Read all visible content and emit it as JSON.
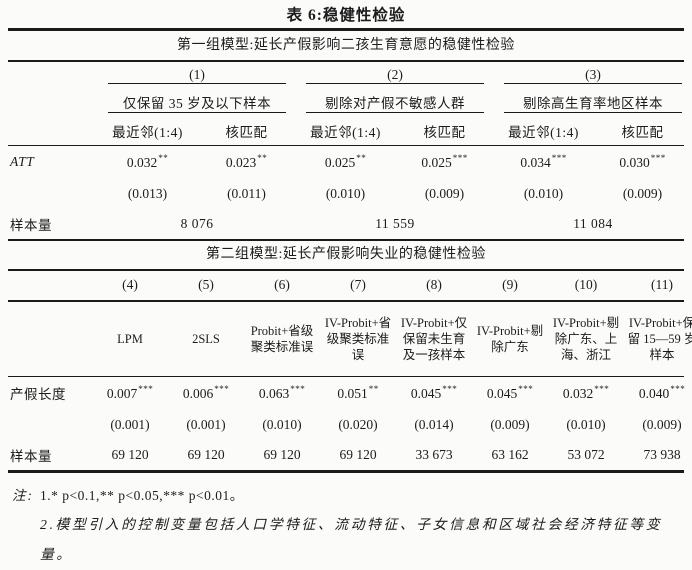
{
  "title": "表 6:稳健性检验",
  "table1": {
    "section_title": "第一组模型:延长产假影响二孩生育意愿的稳健性检验",
    "groups": [
      {
        "number": "(1)",
        "label": "仅保留 35 岁及以下样本"
      },
      {
        "number": "(2)",
        "label": "剔除对产假不敏感人群"
      },
      {
        "number": "(3)",
        "label": "剔除高生育率地区样本"
      }
    ],
    "subcols": [
      "最近邻(1:4)",
      "核匹配",
      "最近邻(1:4)",
      "核匹配",
      "最近邻(1:4)",
      "核匹配"
    ],
    "att_label": "ATT",
    "att_values": [
      "0.032",
      "0.023",
      "0.025",
      "0.025",
      "0.034",
      "0.030"
    ],
    "att_stars": [
      "**",
      "**",
      "**",
      "***",
      "***",
      "***"
    ],
    "se_values": [
      "(0.013)",
      "(0.011)",
      "(0.010)",
      "(0.009)",
      "(0.010)",
      "(0.009)"
    ],
    "n_label": "样本量",
    "n_values": [
      "8 076",
      "11 559",
      "11 084"
    ]
  },
  "table2": {
    "section_title": "第二组模型:延长产假影响失业的稳健性检验",
    "col_numbers": [
      "(4)",
      "(5)",
      "(6)",
      "(7)",
      "(8)",
      "(9)",
      "(10)",
      "(11)"
    ],
    "col_methods": [
      "LPM",
      "2SLS",
      "Probit+省级聚类标准误",
      "IV-Probit+省级聚类标准误",
      "IV-Probit+仅保留未生育及一孩样本",
      "IV-Probit+剔除广东",
      "IV-Probit+剔除广东、上海、浙江",
      "IV-Probit+保留 15—59 岁样本"
    ],
    "coef_label": "产假长度",
    "coef_values": [
      "0.007",
      "0.006",
      "0.063",
      "0.051",
      "0.045",
      "0.045",
      "0.032",
      "0.040"
    ],
    "coef_stars": [
      "***",
      "***",
      "***",
      "**",
      "***",
      "***",
      "***",
      "***"
    ],
    "se_values": [
      "(0.001)",
      "(0.001)",
      "(0.010)",
      "(0.020)",
      "(0.014)",
      "(0.009)",
      "(0.010)",
      "(0.009)"
    ],
    "n_label": "样本量",
    "n_values": [
      "69 120",
      "69 120",
      "69 120",
      "69 120",
      "33 673",
      "63 162",
      "53 072",
      "73 938"
    ]
  },
  "notes": {
    "prefix": "注:",
    "note1": "1.* p<0.1,** p<0.05,*** p<0.01。",
    "note2": "2.模型引入的控制变量包括人口学特征、流动特征、子女信息和区域社会经济特征等变量。"
  }
}
